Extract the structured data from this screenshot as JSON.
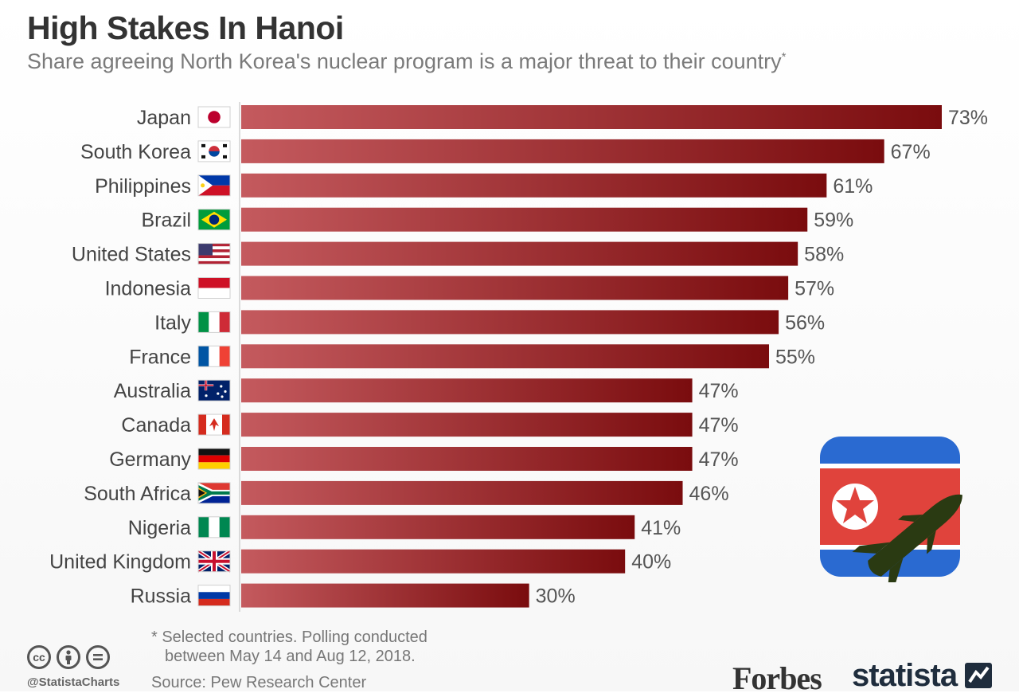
{
  "header": {
    "title": "High Stakes In Hanoi",
    "subtitle": "Share agreeing North Korea's nuclear program is a major threat to their country",
    "subtitle_mark": "*"
  },
  "chart_data": {
    "type": "bar",
    "orientation": "horizontal",
    "title": "High Stakes In Hanoi",
    "subtitle": "Share agreeing North Korea's nuclear program is a major threat to their country*",
    "categories": [
      "Japan",
      "South Korea",
      "Philippines",
      "Brazil",
      "United States",
      "Indonesia",
      "Italy",
      "France",
      "Australia",
      "Canada",
      "Germany",
      "South Africa",
      "Nigeria",
      "United Kingdom",
      "Russia"
    ],
    "values": [
      73,
      67,
      61,
      59,
      58,
      57,
      56,
      55,
      47,
      47,
      47,
      46,
      41,
      40,
      30
    ],
    "value_labels": [
      "73%",
      "67%",
      "61%",
      "59%",
      "58%",
      "57%",
      "56%",
      "55%",
      "47%",
      "47%",
      "47%",
      "46%",
      "41%",
      "40%",
      "30%"
    ],
    "flags": [
      "japan",
      "south-korea",
      "philippines",
      "brazil",
      "united-states",
      "indonesia",
      "italy",
      "france",
      "australia",
      "canada",
      "germany",
      "south-africa",
      "nigeria",
      "united-kingdom",
      "russia"
    ],
    "unit": "%",
    "xlim": [
      0,
      73
    ],
    "grid": false,
    "legend": "none",
    "bar_color_light": "#c45a5e",
    "bar_color_dark": "#7a0c0e"
  },
  "footer": {
    "footnote_line1": "* Selected countries. Polling conducted",
    "footnote_line2": "between May 14 and Aug 12, 2018.",
    "source": "Source: Pew Research Center",
    "handle": "@StatistaCharts",
    "cc_icons": [
      "cc",
      "by",
      "nd"
    ],
    "forbes": "Forbes",
    "statista": "statista"
  },
  "illustration": {
    "icon": "north-korea-flag-missile-icon",
    "colors": {
      "blue": "#2a6ad1",
      "red": "#e0433c",
      "missile": "#2a3a12"
    }
  }
}
